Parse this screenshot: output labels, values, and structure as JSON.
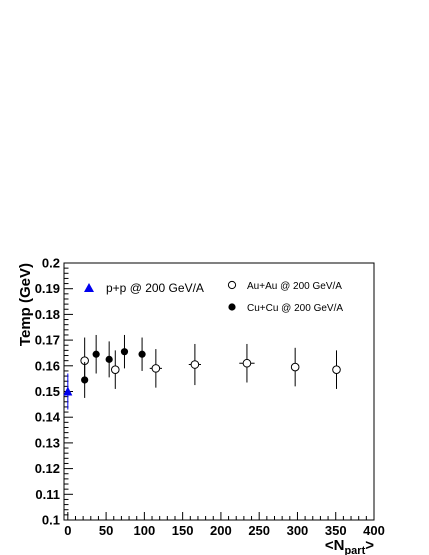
{
  "chart_data": {
    "type": "scatter",
    "title": "",
    "xlabel": "<N",
    "xlabel_sub": "part",
    "xlabel_suffix": ">",
    "ylabel": "Temp (GeV)",
    "xlim": [
      -5,
      400
    ],
    "ylim": [
      0.1,
      0.2
    ],
    "x_ticks": [
      0,
      50,
      100,
      150,
      200,
      250,
      300,
      350,
      400
    ],
    "y_ticks": [
      0.1,
      0.11,
      0.12,
      0.13,
      0.14,
      0.15,
      0.16,
      0.17,
      0.18,
      0.19,
      0.2
    ],
    "y_tick_labels": [
      "0.1",
      "0.11",
      "0.12",
      "0.13",
      "0.14",
      "0.15",
      "0.16",
      "0.17",
      "0.18",
      "0.19",
      "0.2"
    ],
    "grid": false,
    "series": [
      {
        "name": "p+p @ 200 GeV/A",
        "marker": "triangle",
        "color": "#0000ee",
        "legend_position": "top-left",
        "points": [
          {
            "x": 0,
            "y": 0.15,
            "yerr": 0.007,
            "xerr": 0
          }
        ]
      },
      {
        "name": "Au+Au @ 200 GeV/A",
        "marker": "open-circle",
        "color": "#000000",
        "legend_position": "top-right",
        "points": [
          {
            "x": 22,
            "y": 0.162,
            "yerr": 0.009,
            "xerr": 3
          },
          {
            "x": 62,
            "y": 0.1585,
            "yerr": 0.0075,
            "xerr": 4
          },
          {
            "x": 115,
            "y": 0.159,
            "yerr": 0.0075,
            "xerr": 8
          },
          {
            "x": 166,
            "y": 0.1605,
            "yerr": 0.008,
            "xerr": 8
          },
          {
            "x": 234,
            "y": 0.161,
            "yerr": 0.0075,
            "xerr": 10
          },
          {
            "x": 297,
            "y": 0.1595,
            "yerr": 0.0075,
            "xerr": 5
          },
          {
            "x": 351,
            "y": 0.1585,
            "yerr": 0.0075,
            "xerr": 3
          }
        ]
      },
      {
        "name": "Cu+Cu @ 200 GeV/A",
        "marker": "filled-circle",
        "color": "#000000",
        "legend_position": "top-right",
        "points": [
          {
            "x": 22,
            "y": 0.1545,
            "yerr": 0.007,
            "xerr": 0
          },
          {
            "x": 37,
            "y": 0.1645,
            "yerr": 0.0075,
            "xerr": 0
          },
          {
            "x": 54,
            "y": 0.1625,
            "yerr": 0.007,
            "xerr": 0
          },
          {
            "x": 74,
            "y": 0.1655,
            "yerr": 0.0065,
            "xerr": 0
          },
          {
            "x": 97,
            "y": 0.1645,
            "yerr": 0.0065,
            "xerr": 0
          }
        ]
      }
    ]
  }
}
